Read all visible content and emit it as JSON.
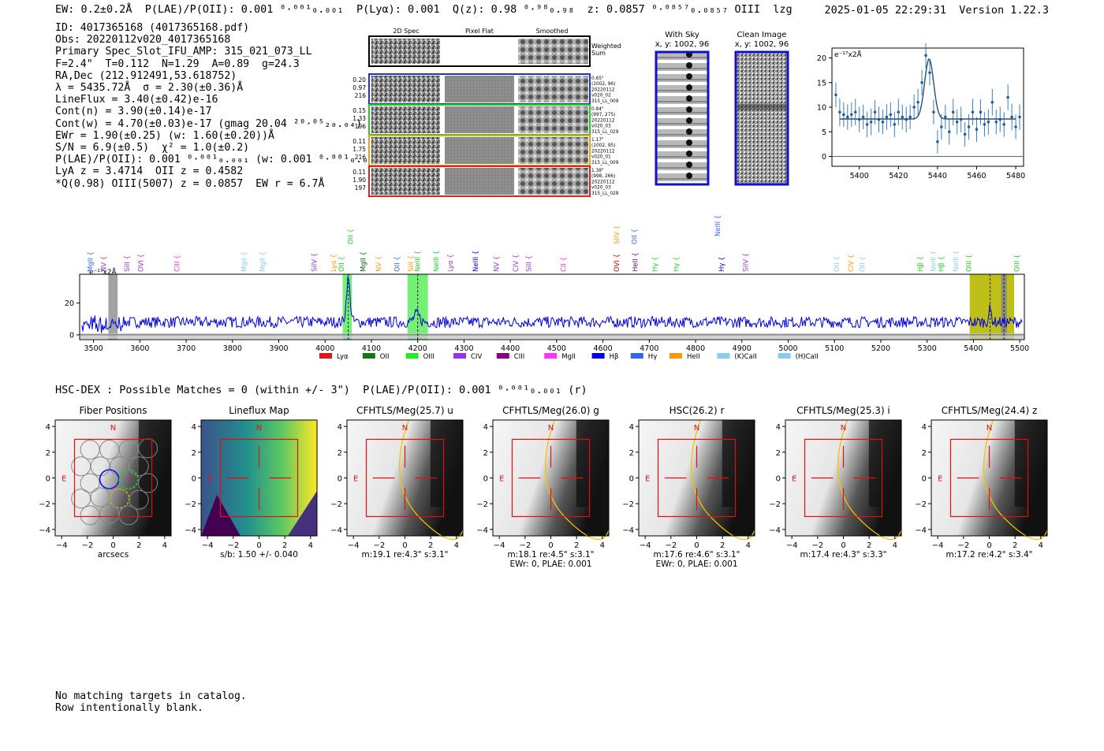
{
  "header": {
    "line": "EW: 0.2±0.2Å  P(LAE)/P(OII): 0.001 ⁰·⁰⁰¹₀.₀₀₁  P(Lyα): 0.001  Q(z): 0.98 ⁰·⁹⁸₀.₉₈  z: 0.0857 ⁰·⁰⁸⁵⁷₀.₀₈₅₇ OIII  lzg",
    "timestamp": "2025-01-05 22:29:31  Version 1.22.3"
  },
  "info": [
    "ID: 4017365168 (4017365168.pdf)",
    "Obs: 20220112v020_4017365168",
    "Primary Spec_Slot_IFU_AMP: 315_021_073_LL",
    "F=2.4\"  T=0.112  N=1.29  A=0.89  g=24.3",
    "RA,Dec (212.912491,53.618752)",
    "λ = 5435.72Å  σ = 2.30(±0.36)Å",
    "LineFlux = 3.40(±0.42)e-16",
    "Cont(n) = 3.90(±0.14)e-17",
    "Cont(w) = 4.70(±0.03)e-17 (gmag 20.04 ²⁰·⁰⁵₂₀.₀₄)",
    "EWr = 1.90(±0.25) (w: 1.60(±0.20))Å",
    "S/N = 6.9(±0.5)  χ² = 1.0(±0.2)",
    "P(LAE)/P(OII): 0.001 ⁰·⁰⁰¹₀.₀₀₁ (w: 0.001 ⁰·⁰⁰¹₀.₀₀₁)",
    "LyA z = 3.4714  OII z = 0.4582",
    "*Q(0.98) OIII(5007) z = 0.0857  EW r = 6.7Å"
  ],
  "cutouts": {
    "col_headers": [
      "2D Spec",
      "Pixel Flat",
      "Smoothed"
    ],
    "weighted_label": [
      "Weighted",
      "Sum"
    ],
    "rows": [
      {
        "left": [
          "0.20",
          "0.97",
          "216"
        ],
        "right": [
          "0.65\"",
          "(1002, 96)",
          "20220112",
          "v020_02",
          "315_LL_009"
        ],
        "color": "#2233cc"
      },
      {
        "left": [
          "0.15",
          "1.33",
          "196"
        ],
        "right": [
          "0.84\"",
          "(997, 275)",
          "20220112",
          "v020_03",
          "315_LL_029"
        ],
        "color": "#22cc22"
      },
      {
        "left": [
          "0.11",
          "1.75",
          "216"
        ],
        "right": [
          "1.17\"",
          "(1002, 95)",
          "20220112",
          "v020_01",
          "315_LL_009"
        ],
        "color": "#e8a020"
      },
      {
        "left": [
          "0.11",
          "1.90",
          "197"
        ],
        "right": [
          "1.38\"",
          "(998, 266)",
          "20220112",
          "v020_03",
          "315_LL_028"
        ],
        "color": "#dd2222"
      }
    ]
  },
  "sky_panels": [
    {
      "title": "With Sky",
      "coords": "x, y: 1002, 96"
    },
    {
      "title": "Clean Image",
      "coords": "x, y: 1002, 96"
    }
  ],
  "zoom_chart": {
    "type": "scatter",
    "unit_label": "e⁻¹⁷x2Å",
    "xlim": [
      5386,
      5484
    ],
    "ylim": [
      -2,
      22
    ],
    "xticks": [
      5400,
      5420,
      5440,
      5460,
      5480
    ],
    "yticks": [
      0,
      5,
      10,
      15,
      20
    ],
    "x": [
      5388,
      5390,
      5392,
      5394,
      5396,
      5398,
      5400,
      5402,
      5404,
      5406,
      5408,
      5410,
      5412,
      5414,
      5416,
      5418,
      5420,
      5422,
      5424,
      5426,
      5428,
      5430,
      5432,
      5434,
      5436,
      5438,
      5440,
      5442,
      5444,
      5446,
      5448,
      5450,
      5452,
      5454,
      5456,
      5458,
      5460,
      5462,
      5464,
      5466,
      5468,
      5470,
      5472,
      5474,
      5476,
      5478,
      5480,
      5482
    ],
    "y": [
      12.5,
      9,
      8.5,
      8,
      8.5,
      9,
      7.5,
      8,
      6.5,
      7,
      9,
      7.5,
      7,
      8,
      8.5,
      6.5,
      9,
      8,
      7.5,
      8,
      10,
      11,
      15,
      20.5,
      17,
      9,
      3,
      6,
      8,
      5,
      9,
      7,
      7.5,
      4.5,
      6,
      9,
      5.5,
      9,
      6.5,
      7,
      11,
      7,
      7.5,
      6.5,
      12,
      8,
      6,
      8
    ],
    "err": [
      2.5,
      2.8,
      2.5,
      2.6,
      2.5,
      2.7,
      2.6,
      2.5,
      2.6,
      2.7,
      2.5,
      2.6,
      2.5,
      2.6,
      2.5,
      2.6,
      2.7,
      2.5,
      2.6,
      2.5,
      2.6,
      2.7,
      2.6,
      2.5,
      2.6,
      2.5,
      2.4,
      2.6,
      2.5,
      2.6,
      2.7,
      2.5,
      2.6,
      2.5,
      2.6,
      2.7,
      2.5,
      2.6,
      2.5,
      2.6,
      2.7,
      2.5,
      2.6,
      2.5,
      2.6,
      2.7,
      2.5,
      2.6
    ],
    "model": {
      "baseline": 7.6,
      "amplitude": 12.2,
      "center": 5435.7,
      "sigma": 2.3
    }
  },
  "chart_data": {
    "type": "line",
    "title": "",
    "unit_label": "e⁻¹⁷x2Å",
    "xlim": [
      3470,
      5510
    ],
    "ylim": [
      -3,
      38
    ],
    "xticks": [
      3500,
      3600,
      3700,
      3800,
      3900,
      4000,
      4100,
      4200,
      4300,
      4400,
      4500,
      4600,
      4700,
      4800,
      4900,
      5000,
      5100,
      5200,
      5300,
      5400,
      5500
    ],
    "yticks": [
      0,
      20
    ],
    "baseline": 8.0,
    "peaks": [
      {
        "center": 4050,
        "amplitude": 27,
        "sigma": 4
      },
      {
        "center": 4198,
        "amplitude": 5,
        "sigma": 6
      },
      {
        "center": 5436,
        "amplitude": 8,
        "sigma": 3
      }
    ],
    "bands": [
      {
        "x0": 4038,
        "x1": 4058,
        "color": "#66ee66"
      },
      {
        "x0": 4178,
        "x1": 4222,
        "color": "#66ee66"
      },
      {
        "x0": 5392,
        "x1": 5488,
        "color": "#b8b800"
      },
      {
        "x0": 3532,
        "x1": 3552,
        "color": "#999999"
      },
      {
        "x0": 5460,
        "x1": 5472,
        "color": "#888888"
      }
    ],
    "vlines": [
      4050,
      4200,
      5436,
      5466
    ],
    "line_markers": [
      {
        "label": "MgII",
        "x": 3493,
        "color": "#3366ff",
        "level": 0
      },
      {
        "label": "NV",
        "x": 3522,
        "color": "#9933cc",
        "level": 0
      },
      {
        "label": "SiII",
        "x": 3572,
        "color": "#9933cc",
        "level": 0
      },
      {
        "label": "OVI",
        "x": 3602,
        "color": "#9933cc",
        "level": 0
      },
      {
        "label": "CIII",
        "x": 3680,
        "color": "#dd33dd",
        "level": 0
      },
      {
        "label": "MgII",
        "x": 3825,
        "color": "#87ceeb",
        "level": 0
      },
      {
        "label": "MgII",
        "x": 3865,
        "color": "#87ceeb",
        "level": 0
      },
      {
        "label": "SiIV",
        "x": 3977,
        "color": "#9933cc",
        "level": 0
      },
      {
        "label": "Lyα",
        "x": 4018,
        "color": "#ff9900",
        "level": 0
      },
      {
        "label": "OII",
        "x": 4035,
        "color": "#22cc22",
        "level": 0
      },
      {
        "label": "OII",
        "x": 4055,
        "color": "#22cc22",
        "level": 1
      },
      {
        "label": "MgII",
        "x": 4082,
        "color": "#006600",
        "level": 0
      },
      {
        "label": "NV",
        "x": 4115,
        "color": "#ff9900",
        "level": 0
      },
      {
        "label": "OII",
        "x": 4155,
        "color": "#3366ff",
        "level": 0
      },
      {
        "label": "SiII",
        "x": 4185,
        "color": "#ff9900",
        "level": 0
      },
      {
        "label": "NeIII",
        "x": 4200,
        "color": "#22cc22",
        "level": 0
      },
      {
        "label": "NeIII",
        "x": 4240,
        "color": "#22cc22",
        "level": 0
      },
      {
        "label": "Lyα",
        "x": 4270,
        "color": "#9933cc",
        "level": 0
      },
      {
        "label": "NeIII",
        "x": 4325,
        "color": "#0000cc",
        "level": 0
      },
      {
        "label": "NV",
        "x": 4370,
        "color": "#9933cc",
        "level": 0
      },
      {
        "label": "CIV",
        "x": 4412,
        "color": "#9933cc",
        "level": 0
      },
      {
        "label": "SiII",
        "x": 4440,
        "color": "#9933cc",
        "level": 0
      },
      {
        "label": "CII",
        "x": 4515,
        "color": "#dd33dd",
        "level": 0
      },
      {
        "label": "SiIV",
        "x": 4630,
        "color": "#ff9900",
        "level": 1
      },
      {
        "label": "OII",
        "x": 4668,
        "color": "#3366ff",
        "level": 1
      },
      {
        "label": "OVI",
        "x": 4630,
        "color": "#cc0000",
        "level": 0
      },
      {
        "label": "HeII",
        "x": 4670,
        "color": "#660066",
        "level": 0
      },
      {
        "label": "Hγ",
        "x": 4712,
        "color": "#22cc22",
        "level": 0
      },
      {
        "label": "Hγ",
        "x": 4758,
        "color": "#22cc22",
        "level": 0
      },
      {
        "label": "NeIII",
        "x": 4848,
        "color": "#3366ff",
        "level": 2
      },
      {
        "label": "Hγ",
        "x": 4856,
        "color": "#0000cc",
        "level": 0
      },
      {
        "label": "SiIV",
        "x": 4908,
        "color": "#9933cc",
        "level": 0
      },
      {
        "label": "OII",
        "x": 5105,
        "color": "#87ceeb",
        "level": 0
      },
      {
        "label": "CIV",
        "x": 5135,
        "color": "#ff9900",
        "level": 0
      },
      {
        "label": "OII",
        "x": 5160,
        "color": "#87ceeb",
        "level": 0
      },
      {
        "label": "Hβ",
        "x": 5285,
        "color": "#22cc22",
        "level": 0
      },
      {
        "label": "NeIII",
        "x": 5313,
        "color": "#87ceeb",
        "level": 0
      },
      {
        "label": "Hβ",
        "x": 5330,
        "color": "#22cc22",
        "level": 0
      },
      {
        "label": "NeIII",
        "x": 5362,
        "color": "#87ceeb",
        "level": 0
      },
      {
        "label": "OIII",
        "x": 5390,
        "color": "#22cc22",
        "level": 0
      },
      {
        "label": "OIII",
        "x": 5494,
        "color": "#22cc22",
        "level": 0
      }
    ],
    "legend": [
      {
        "label": "Lyα",
        "color": "#ee1111"
      },
      {
        "label": "OII",
        "color": "#117711"
      },
      {
        "label": "OIII",
        "color": "#22ee22"
      },
      {
        "label": "CIV",
        "color": "#9933ee"
      },
      {
        "label": "CIII",
        "color": "#880088"
      },
      {
        "label": "MgII",
        "color": "#ff33ff"
      },
      {
        "label": "Hβ",
        "color": "#0000ee"
      },
      {
        "label": "Hγ",
        "color": "#3366ee"
      },
      {
        "label": "HeII",
        "color": "#ff9900"
      },
      {
        "label": "(K)CaII",
        "color": "#88ccee"
      },
      {
        "label": "(H)CaII",
        "color": "#88ccee"
      }
    ]
  },
  "hsc_line": "HSC-DEX : Possible Matches = 0 (within +/- 3\")  P(LAE)/P(OII): 0.001 ⁰·⁰⁰¹₀.₀₀₁ (r)",
  "imaging": {
    "ticks": [
      "−4",
      "−2",
      "0",
      "2",
      "4"
    ],
    "north": "N",
    "east": "E",
    "panels": [
      {
        "title": "Fiber Positions",
        "caption": [
          "arcsecs"
        ],
        "kind": "fibers"
      },
      {
        "title": "Lineflux Map",
        "caption": [
          "s/b: 1.50 +/- 0.040"
        ],
        "kind": "lineflux"
      },
      {
        "title": "CFHTLS/Meg(25.7) u",
        "caption": [
          "m:19.1  re:4.3\"  s:3.1\""
        ],
        "kind": "image"
      },
      {
        "title": "CFHTLS/Meg(26.0) g",
        "caption": [
          "m:18.1  re:4.5\"  s:3.1\"",
          "EWr: 0, PLAE: 0.001"
        ],
        "kind": "image"
      },
      {
        "title": "HSC(26.2) r",
        "caption": [
          "m:17.6  re:4.6\"  s:3.1\"",
          "EWr: 0, PLAE: 0.001"
        ],
        "kind": "image"
      },
      {
        "title": "CFHTLS/Meg(25.3) i",
        "caption": [
          "m:17.4  re:4.3\"  s:3.3\""
        ],
        "kind": "image"
      },
      {
        "title": "CFHTLS/Meg(24.4) z",
        "caption": [
          "m:17.2  re:4.2\"  s:3.4\""
        ],
        "kind": "image"
      }
    ]
  },
  "footer": [
    "No matching targets in catalog.",
    "Row intentionally blank."
  ]
}
